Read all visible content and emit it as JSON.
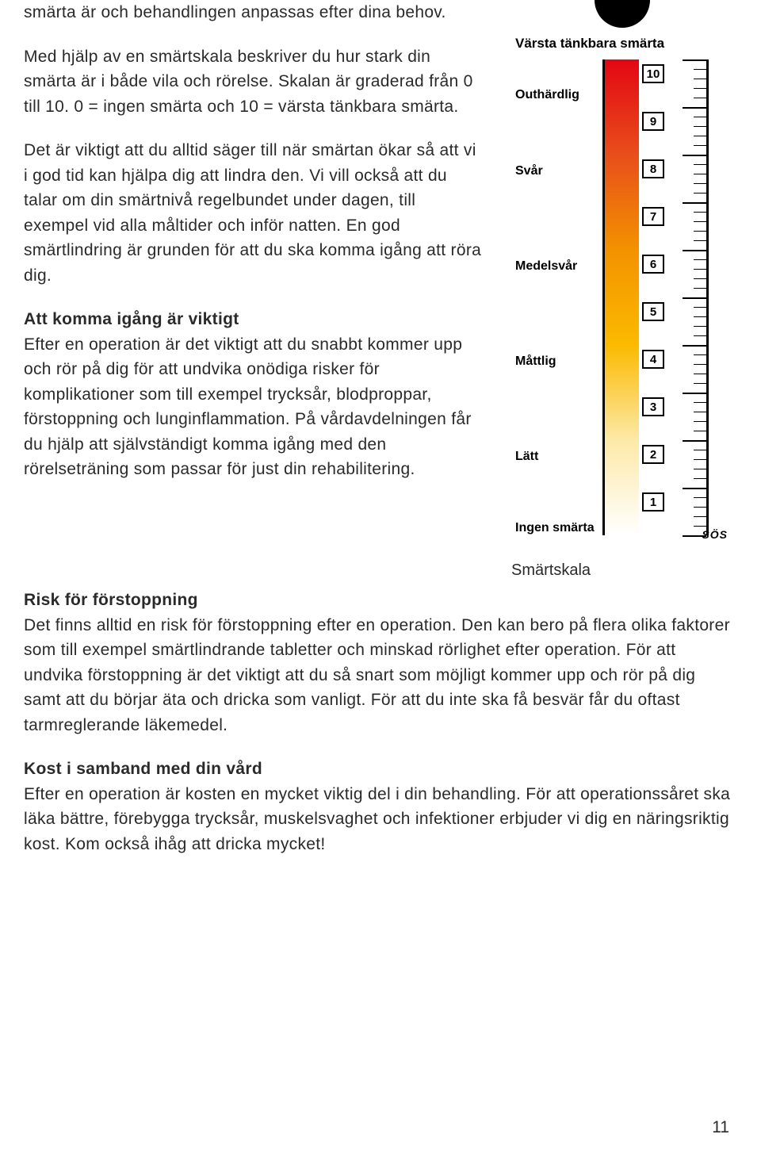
{
  "text": {
    "p1": "smärta är och behandlingen anpassas efter dina behov.",
    "p2": "Med hjälp av en smärtskala beskriver du hur stark din smärta är i både vila och rörelse. Skalan är graderad från 0 till 10. 0 = ingen smärta och 10 = värsta tänkbara smärta.",
    "p3": "Det är viktigt att du alltid säger till när smärtan ökar så att vi i god tid kan hjälpa dig att lindra den. Vi vill också att du talar om din smärtnivå regelbundet under dagen, till exempel vid alla måltider och inför natten. En god smärtlindring är grunden för att du ska komma igång att röra dig.",
    "h1": "Att komma igång är viktigt",
    "p4": "Efter en operation är det viktigt att du snabbt kommer upp och rör på dig för att undvika onödiga risker för komplikationer som till exempel trycksår, blodproppar, förstoppning och lunginflammation. På vårdavdelningen får du hjälp att självständigt komma igång med den rörelseträning som passar för just din rehabilitering.",
    "h2": "Risk för förstoppning",
    "p5": "Det finns alltid en risk för förstoppning efter en operation. Den kan bero på flera olika faktorer som till exempel smärtlindrande tabletter och minskad rörlighet efter operation. För att undvika förstoppning är det viktigt att du så snart som möjligt kommer upp och rör på dig samt att du börjar äta och dricka som vanligt. För att du inte ska få besvär får du oftast tarmreglerande läkemedel.",
    "h3": "Kost i samband med din vård",
    "p6": "Efter en operation är kosten en mycket viktig del i din behandling. För att operationssåret ska läka bättre, förebygga trycksår, muskelsvaghet och infektioner erbjuder vi dig en näringsriktig kost. Kom också ihåg att dricka mycket!"
  },
  "scale": {
    "title": "Värsta tänkbara smärta",
    "caption": "Smärtskala",
    "sos": "SÖS",
    "numbers": [
      "10",
      "9",
      "8",
      "7",
      "6",
      "5",
      "4",
      "3",
      "2",
      "1"
    ],
    "labels": [
      {
        "text": "Outhärdlig",
        "pos": 6
      },
      {
        "text": "Svår",
        "pos": 22
      },
      {
        "text": "Medelsvår",
        "pos": 42
      },
      {
        "text": "Måttlig",
        "pos": 62
      },
      {
        "text": "Lätt",
        "pos": 82
      },
      {
        "text": "Ingen smärta",
        "pos": 97
      }
    ],
    "gradient": {
      "c10": "#e30613",
      "c8": "#e84e1b",
      "c6": "#f39200",
      "c4": "#fbba00",
      "c2": "#fde9a8",
      "c0": "#ffffff"
    }
  },
  "page_number": "11",
  "style": {
    "body_width": 960,
    "body_height": 1464,
    "text_color": "#2a2a2a",
    "bg_color": "#ffffff",
    "font_size_body": 21,
    "font_size_scale_title": 17,
    "font_size_scale_labels": 16,
    "scale_border_color": "#000000"
  }
}
